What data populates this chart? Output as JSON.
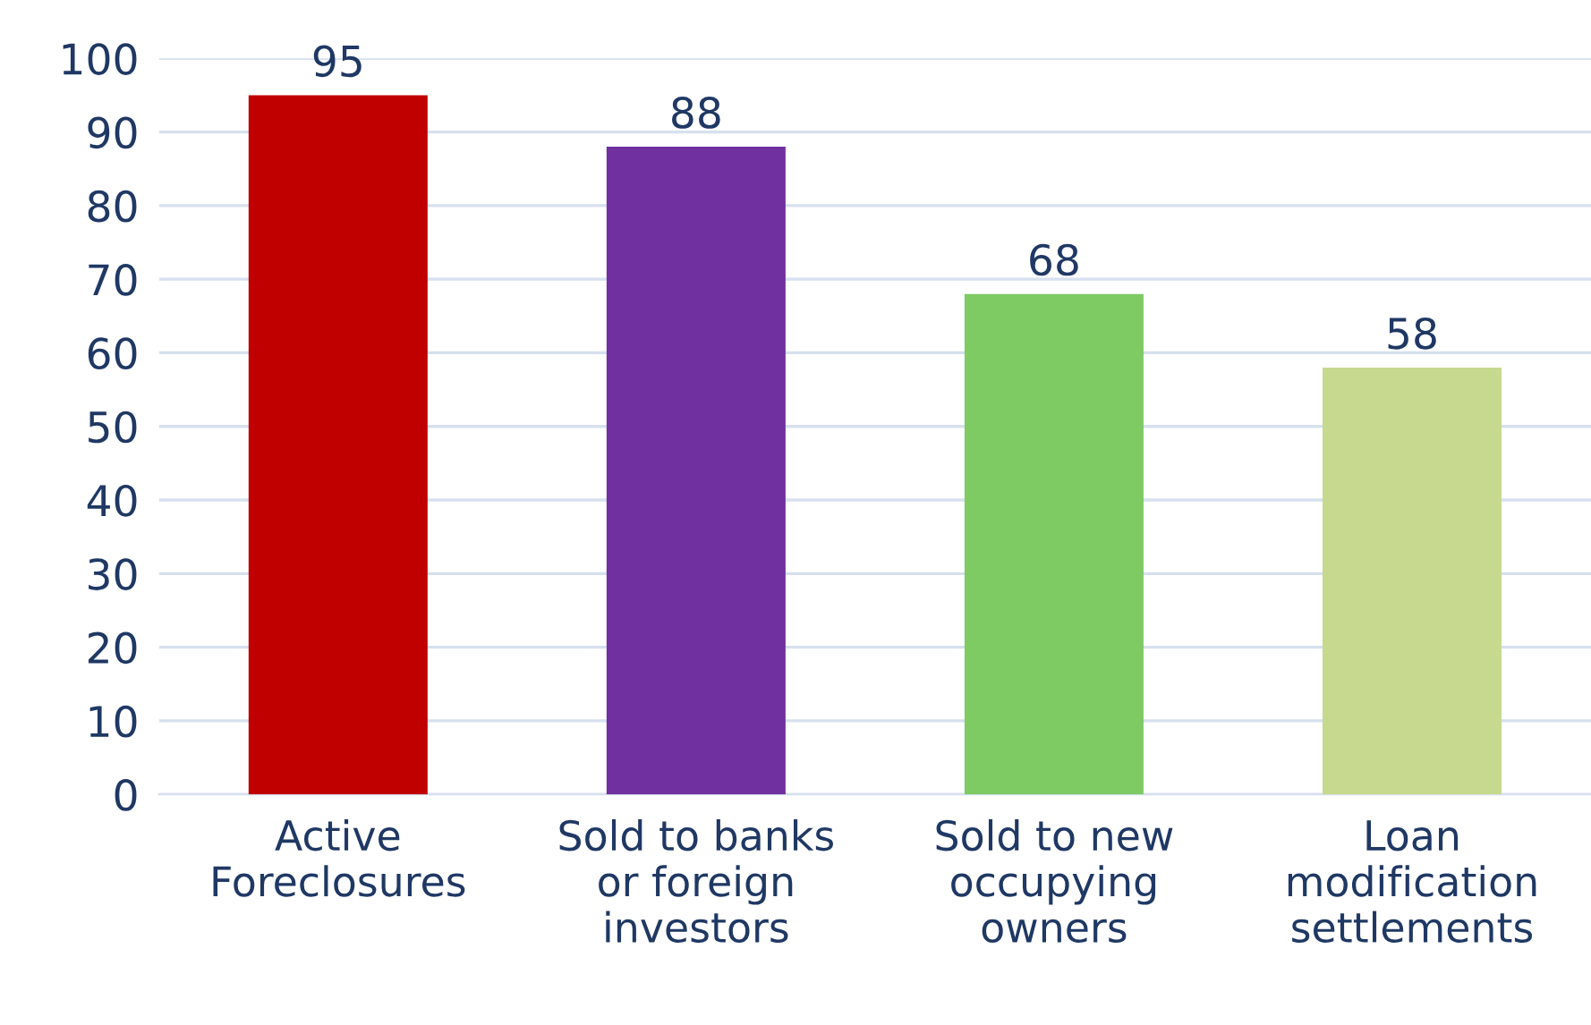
{
  "chart_data": {
    "type": "bar",
    "categories": [
      "Active\nForeclosures",
      "Sold to banks\nor foreign\ninvestors",
      "Sold to new\noccupying\nowners",
      "Loan\nmodification\nsettlements"
    ],
    "values": [
      95,
      88,
      68,
      58
    ],
    "colors": [
      "#c00000",
      "#7030a0",
      "#7ecb64",
      "#c6d98e"
    ],
    "ylim": [
      0,
      100
    ],
    "yticks": [
      0,
      10,
      20,
      30,
      40,
      50,
      60,
      70,
      80,
      90,
      100
    ],
    "grid": "y",
    "data_labels": true
  }
}
